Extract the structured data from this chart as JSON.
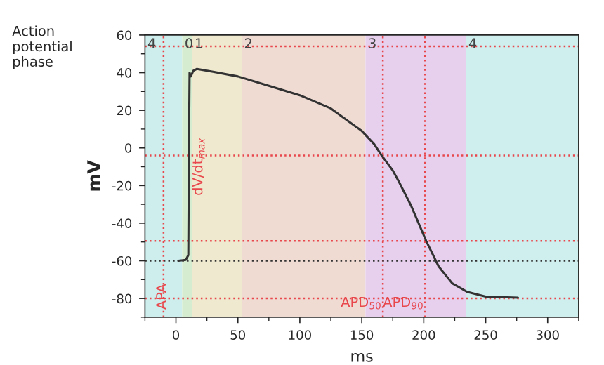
{
  "chart_data": {
    "type": "line",
    "xlabel": "ms",
    "ylabel": "mV",
    "x": [
      2,
      8,
      10,
      10.5,
      11,
      12,
      14,
      17,
      30,
      50,
      75,
      100,
      125,
      150,
      160,
      166,
      175,
      180,
      190,
      202,
      212,
      223,
      235,
      250,
      276
    ],
    "series": [
      {
        "color": "#333333",
        "values": [
          -60,
          -59.5,
          -57,
          0,
          40,
          38,
          41,
          42,
          40.5,
          38,
          33,
          28,
          21,
          9,
          2,
          -4,
          -12,
          -18,
          -31,
          -49.5,
          -63,
          -72,
          -76.5,
          -79,
          -79.6
        ]
      }
    ],
    "xlim": [
      -25,
      325
    ],
    "xticks": [
      0,
      50,
      100,
      150,
      200,
      250,
      300
    ],
    "ylim": [
      -90,
      60
    ],
    "yticks": [
      -80,
      -60,
      -40,
      -20,
      0,
      20,
      40,
      60
    ],
    "bands": [
      {
        "axis": "x",
        "from": -25,
        "to": 5,
        "label": "4",
        "color": "#cdeeed"
      },
      {
        "axis": "x",
        "from": 5,
        "to": 13,
        "label": "0",
        "color": "#d5ecd0"
      },
      {
        "axis": "x",
        "from": 13,
        "to": 53,
        "label": "1",
        "color": "#eee9cf"
      },
      {
        "axis": "x",
        "from": 53,
        "to": 153,
        "label": "2",
        "color": "#f0dbd3"
      },
      {
        "axis": "x",
        "from": 153,
        "to": 234,
        "label": "3",
        "color": "#e6d0ee"
      },
      {
        "axis": "x",
        "from": 234,
        "to": 325,
        "label": "4",
        "color": "#cfeeee"
      }
    ],
    "ref_lines": [
      {
        "axis": "x",
        "value": -10,
        "label": "APA",
        "color": "#e8474c",
        "line_style": "dotted"
      },
      {
        "axis": "x",
        "value": 167,
        "label": "APD$_{50}$",
        "color": "#e8474c",
        "line_style": "dotted"
      },
      {
        "axis": "x",
        "value": 201,
        "label": "APD$_{90}$",
        "color": "#e8474c",
        "line_style": "dotted"
      },
      {
        "axis": "y",
        "value": 54,
        "color": "#e8474c",
        "line_style": "dotted"
      },
      {
        "axis": "y",
        "value": -4,
        "color": "#e8474c",
        "line_style": "dotted"
      },
      {
        "axis": "y",
        "value": -49.5,
        "color": "#e8474c",
        "line_style": "dotted"
      },
      {
        "axis": "y",
        "value": -80,
        "color": "#e8474c",
        "line_style": "dotted"
      },
      {
        "axis": "y",
        "value": -60,
        "color": "#333333",
        "line_style": "dotted"
      }
    ],
    "annotations": [
      "Action potential phase",
      {
        "text": "dV/dt$_{max}$",
        "x": 11,
        "y": -10
      }
    ],
    "grid": false,
    "legend": false
  }
}
